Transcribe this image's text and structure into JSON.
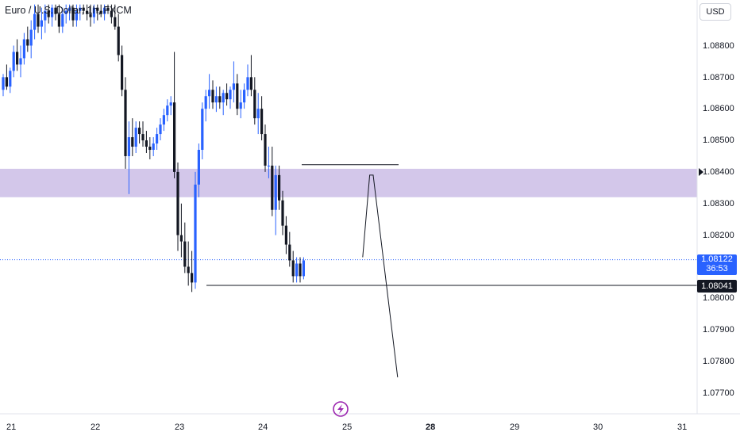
{
  "header": {
    "title": "Euro / U.S. Dollar, 1h, FXCM",
    "currency_button": "USD"
  },
  "price_tags": {
    "current_price": "1.08122",
    "countdown": "36:53",
    "level": "1.08041"
  },
  "colors": {
    "up": "#2962ff",
    "down": "#131722",
    "zone": "#d1c4e9",
    "current_line": "#2962ff"
  },
  "icons": {
    "bottom_logo": "lightning-bolt-icon"
  },
  "chart_data": {
    "type": "candlestick",
    "title": "Euro / U.S. Dollar, 1h, FXCM",
    "y_ticks": [
      "1.08800",
      "1.08700",
      "1.08600",
      "1.08500",
      "1.08400",
      "1.08300",
      "1.08200",
      "1.08000",
      "1.07900",
      "1.07800",
      "1.07700"
    ],
    "x_ticks": [
      "21",
      "22",
      "23",
      "24",
      "25",
      "28",
      "29",
      "30",
      "31"
    ],
    "ylim": [
      1.0766,
      1.0893
    ],
    "current_price": 1.08122,
    "horizontal_levels": [
      1.08041,
      1.08423
    ],
    "zone": {
      "low": 1.0832,
      "high": 1.0841
    },
    "projection_path": [
      {
        "x": "25 06:00",
        "y": 1.0813
      },
      {
        "x": "25 08:00",
        "y": 1.0839
      },
      {
        "x": "25 09:00",
        "y": 1.0839
      },
      {
        "x": "25 16:00",
        "y": 1.0775
      }
    ],
    "candles": [
      [
        1.0866,
        1.0871,
        1.0864,
        1.087
      ],
      [
        1.087,
        1.0874,
        1.0866,
        1.0867
      ],
      [
        1.0867,
        1.0873,
        1.0865,
        1.0872
      ],
      [
        1.0872,
        1.088,
        1.087,
        1.0878
      ],
      [
        1.0878,
        1.0882,
        1.0872,
        1.0874
      ],
      [
        1.0874,
        1.088,
        1.087,
        1.0876
      ],
      [
        1.0876,
        1.0884,
        1.0874,
        1.0882
      ],
      [
        1.0882,
        1.0886,
        1.0878,
        1.088
      ],
      [
        1.088,
        1.0888,
        1.0876,
        1.0885
      ],
      [
        1.0885,
        1.0893,
        1.0882,
        1.089
      ],
      [
        1.089,
        1.0893,
        1.0884,
        1.0886
      ],
      [
        1.0886,
        1.0892,
        1.0882,
        1.0888
      ],
      [
        1.0888,
        1.0893,
        1.0884,
        1.0891
      ],
      [
        1.0891,
        1.0893,
        1.0887,
        1.0889
      ],
      [
        1.0889,
        1.0893,
        1.0886,
        1.0892
      ],
      [
        1.0892,
        1.0893,
        1.0888,
        1.089
      ],
      [
        1.089,
        1.0893,
        1.0884,
        1.0886
      ],
      [
        1.0886,
        1.0892,
        1.0884,
        1.089
      ],
      [
        1.089,
        1.0893,
        1.0887,
        1.0891
      ],
      [
        1.0891,
        1.0893,
        1.0888,
        1.0892
      ],
      [
        1.0892,
        1.0893,
        1.0886,
        1.0888
      ],
      [
        1.0888,
        1.0893,
        1.0886,
        1.0891
      ],
      [
        1.0891,
        1.0893,
        1.0888,
        1.0892
      ],
      [
        1.0892,
        1.0893,
        1.089,
        1.0891
      ],
      [
        1.0891,
        1.0893,
        1.0888,
        1.089
      ],
      [
        1.089,
        1.0893,
        1.0886,
        1.0889
      ],
      [
        1.0889,
        1.0893,
        1.0887,
        1.0892
      ],
      [
        1.0892,
        1.0893,
        1.0888,
        1.0891
      ],
      [
        1.0891,
        1.0893,
        1.0889,
        1.089
      ],
      [
        1.089,
        1.0893,
        1.0888,
        1.0892
      ],
      [
        1.0892,
        1.0893,
        1.089,
        1.0891
      ],
      [
        1.0891,
        1.0893,
        1.0887,
        1.0889
      ],
      [
        1.0889,
        1.0893,
        1.0885,
        1.0886
      ],
      [
        1.0886,
        1.089,
        1.0875,
        1.0877
      ],
      [
        1.0877,
        1.088,
        1.0864,
        1.0866
      ],
      [
        1.0866,
        1.087,
        1.0841,
        1.0845
      ],
      [
        1.0845,
        1.0856,
        1.0833,
        1.0851
      ],
      [
        1.0851,
        1.0857,
        1.0845,
        1.0848
      ],
      [
        1.0848,
        1.0856,
        1.0846,
        1.0854
      ],
      [
        1.0854,
        1.0856,
        1.0849,
        1.0852
      ],
      [
        1.0852,
        1.0856,
        1.0848,
        1.085
      ],
      [
        1.085,
        1.0853,
        1.0846,
        1.0848
      ],
      [
        1.0848,
        1.0851,
        1.0844,
        1.0847
      ],
      [
        1.0847,
        1.0851,
        1.0845,
        1.0849
      ],
      [
        1.0849,
        1.0854,
        1.0847,
        1.0852
      ],
      [
        1.0852,
        1.0857,
        1.085,
        1.0855
      ],
      [
        1.0855,
        1.086,
        1.0853,
        1.0858
      ],
      [
        1.0858,
        1.0863,
        1.0856,
        1.0861
      ],
      [
        1.0861,
        1.0864,
        1.0858,
        1.0862
      ],
      [
        1.0862,
        1.0878,
        1.0838,
        1.084
      ],
      [
        1.084,
        1.0843,
        1.0815,
        1.082
      ],
      [
        1.082,
        1.083,
        1.0813,
        1.0818
      ],
      [
        1.0818,
        1.0824,
        1.0808,
        1.081
      ],
      [
        1.081,
        1.0818,
        1.0804,
        1.0808
      ],
      [
        1.0808,
        1.0815,
        1.0802,
        1.0805
      ],
      [
        1.0805,
        1.084,
        1.0803,
        1.0836
      ],
      [
        1.0836,
        1.0849,
        1.0832,
        1.0847
      ],
      [
        1.0847,
        1.0862,
        1.0844,
        1.086
      ],
      [
        1.086,
        1.0866,
        1.0856,
        1.0864
      ],
      [
        1.0864,
        1.0871,
        1.086,
        1.0866
      ],
      [
        1.0866,
        1.0869,
        1.086,
        1.0862
      ],
      [
        1.0862,
        1.0867,
        1.0859,
        1.0864
      ],
      [
        1.0864,
        1.0867,
        1.086,
        1.0862
      ],
      [
        1.0862,
        1.0866,
        1.0858,
        1.0865
      ],
      [
        1.0865,
        1.0868,
        1.0861,
        1.0863
      ],
      [
        1.0863,
        1.0867,
        1.086,
        1.0866
      ],
      [
        1.0866,
        1.0875,
        1.0862,
        1.0868
      ],
      [
        1.0868,
        1.0871,
        1.0858,
        1.086
      ],
      [
        1.086,
        1.0866,
        1.0857,
        1.0862
      ],
      [
        1.0862,
        1.0868,
        1.086,
        1.0866
      ],
      [
        1.0866,
        1.0874,
        1.0864,
        1.087
      ],
      [
        1.087,
        1.0877,
        1.0864,
        1.0866
      ],
      [
        1.0866,
        1.087,
        1.0855,
        1.0857
      ],
      [
        1.0857,
        1.0865,
        1.0852,
        1.086
      ],
      [
        1.086,
        1.0864,
        1.085,
        1.0852
      ],
      [
        1.0852,
        1.0855,
        1.084,
        1.0842
      ],
      [
        1.0842,
        1.0848,
        1.0838,
        1.0842
      ],
      [
        1.0842,
        1.0848,
        1.0826,
        1.0828
      ],
      [
        1.0828,
        1.0842,
        1.082,
        1.0839
      ],
      [
        1.0839,
        1.0842,
        1.0828,
        1.0831
      ],
      [
        1.0831,
        1.0834,
        1.082,
        1.0823
      ],
      [
        1.0823,
        1.0826,
        1.0814,
        1.0817
      ],
      [
        1.0817,
        1.0821,
        1.081,
        1.0812
      ],
      [
        1.0812,
        1.0815,
        1.0805,
        1.0807
      ],
      [
        1.0807,
        1.0813,
        1.0805,
        1.0811
      ],
      [
        1.0811,
        1.0813,
        1.0805,
        1.0807
      ],
      [
        1.0807,
        1.0813,
        1.0806,
        1.0812
      ]
    ]
  }
}
